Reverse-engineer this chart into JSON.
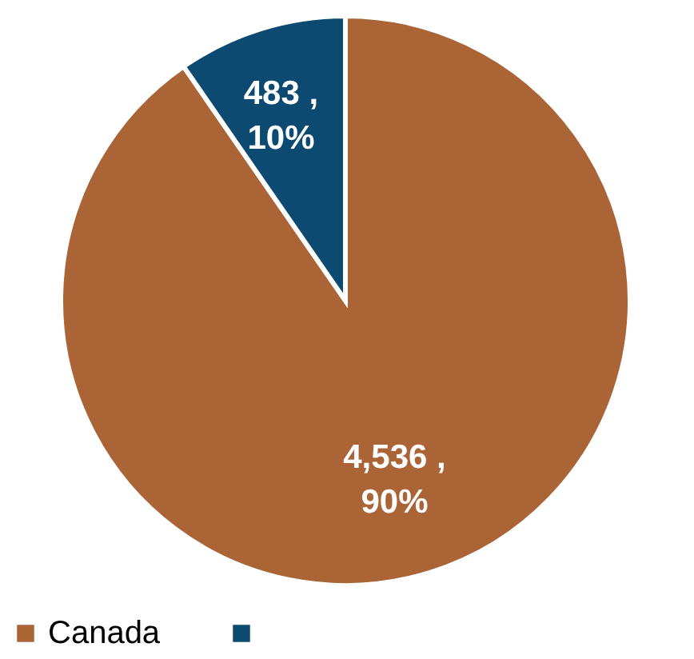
{
  "chart_data": {
    "type": "pie",
    "categories": [
      "Canada",
      null
    ],
    "values": [
      4536,
      483
    ],
    "colors": [
      "#ab6435",
      "#0c4a72"
    ],
    "value_labels": [
      "4,536 ,\n90%",
      "483 ,\n10%"
    ],
    "legend": "bottom"
  }
}
